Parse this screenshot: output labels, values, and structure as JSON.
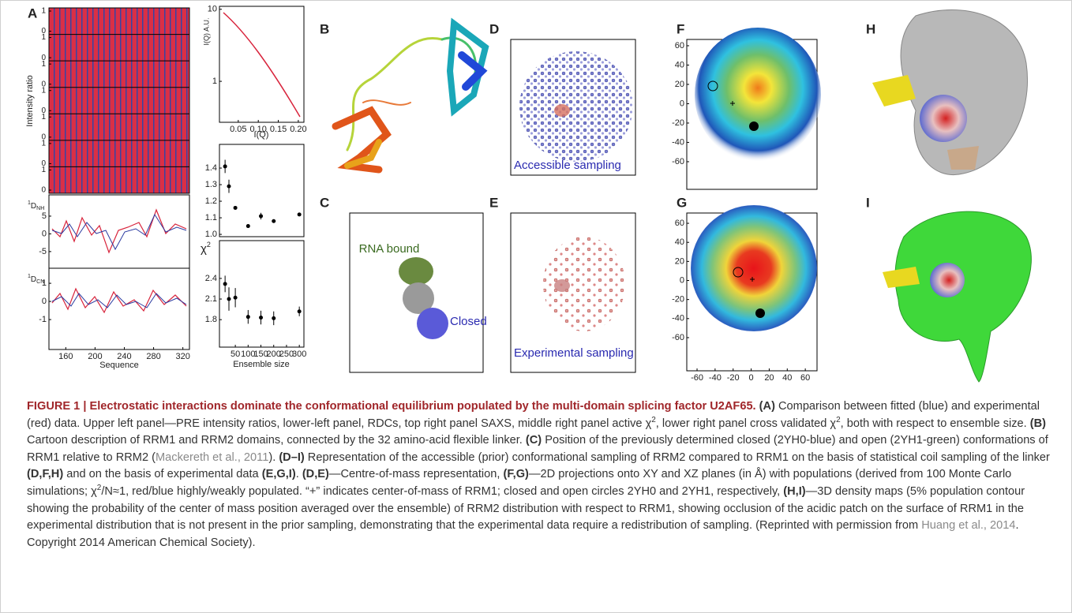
{
  "panels": [
    "A",
    "B",
    "C",
    "D",
    "E",
    "F",
    "G",
    "H",
    "I"
  ],
  "panel_a": {
    "pre": {
      "y_label": "Intensity ratio",
      "yticks": [
        0,
        1
      ]
    },
    "rdc_nh": {
      "label_sup": "1",
      "label": "D",
      "label_sub": "NH",
      "ylim": [
        -9.7,
        11
      ],
      "yticks": [
        5,
        0,
        -5
      ]
    },
    "rdc_cn": {
      "label_sup": "1",
      "label": "D",
      "label_sub": "CN",
      "ylim": [
        -2.65,
        1.83
      ],
      "yticks": [
        1,
        0,
        -1
      ]
    },
    "sequence": {
      "x_label": "Sequence",
      "xlim": [
        137,
        329
      ],
      "xticks": [
        160,
        200,
        240,
        280,
        320
      ]
    },
    "saxs": {
      "y_label": "I(Q) A.U.",
      "x_label": "I(Q)",
      "xlim": [
        0.003,
        0.214
      ],
      "xticks": [
        0.05,
        {
          "value": 0.1,
          "label": "0.10"
        },
        0.15,
        {
          "value": 0.2,
          "label": "0.20"
        }
      ],
      "ylim": [
        0.27,
        11
      ],
      "log_y": true,
      "yticks": [
        10,
        1
      ]
    },
    "chi_active": {
      "xlim": [
        -12,
        318
      ],
      "x": [
        10,
        25,
        50,
        100,
        150,
        200,
        300
      ],
      "ylim": [
        0.986,
        1.543
      ],
      "yticks": [
        1.4,
        1.3,
        1.2,
        1.1,
        {
          "value": 1,
          "label": "1.0"
        }
      ],
      "values": [
        1.41,
        1.29,
        1.16,
        1.05,
        1.11,
        1.08,
        1.12
      ],
      "errors": [
        0.04,
        0.04,
        0.01,
        0.01,
        0.02,
        0.005,
        0.01
      ]
    },
    "chi_cv": {
      "y_label": "χ",
      "y_label_sup": "2",
      "x_label": "Ensemble size",
      "xlim": [
        -12,
        318
      ],
      "xticks": [
        50,
        100,
        150,
        200,
        250,
        300
      ],
      "x": [
        10,
        25,
        50,
        100,
        150,
        200,
        300
      ],
      "ylim": [
        1.4,
        2.95
      ],
      "yticks": [
        2.4,
        2.1,
        1.8
      ],
      "values": [
        2.32,
        2.1,
        2.12,
        1.84,
        1.83,
        1.82,
        1.92
      ],
      "errors": [
        0.12,
        0.17,
        0.14,
        0.1,
        0.1,
        0.1,
        0.07
      ]
    }
  },
  "panel_c": {
    "label_open": "RNA bound",
    "label_closed": "Closed"
  },
  "panel_d": {
    "label": "Accessible sampling"
  },
  "panel_e": {
    "label": "Experimental sampling"
  },
  "panel_f": {
    "ylim": [
      -88.6,
      66.5
    ],
    "yticks": [
      60,
      40,
      20,
      0,
      -20,
      -40,
      -60
    ]
  },
  "panel_g": {
    "ylim": [
      -94.8,
      70.8
    ],
    "yticks": [
      60,
      40,
      20,
      0,
      -20,
      -40,
      -60
    ],
    "xlim": [
      -71.4,
      73
    ],
    "xticks": [
      -60,
      -40,
      -20,
      0,
      20,
      40,
      60
    ]
  },
  "caption": {
    "segments": [
      {
        "text": "FIGURE 1 | Electrostatic interactions dominate the conformational equilibrium populated by the multi-domain splicing factor U2AF65.",
        "style": "heading"
      },
      {
        "text": " (A)",
        "style": "bold"
      },
      {
        "text": " Comparison between fitted (blue) and experimental (red) data. Upper left panel—PRE intensity ratios, lower-left panel, RDCs, top right panel SAXS, middle right panel active χ",
        "style": "normal"
      },
      {
        "text": "2",
        "style": "sup"
      },
      {
        "text": ", lower right panel cross validated χ",
        "style": "normal"
      },
      {
        "text": "2",
        "style": "sup"
      },
      {
        "text": ", both with respect to ensemble size. ",
        "style": "normal"
      },
      {
        "text": "(B)",
        "style": "bold"
      },
      {
        "text": " Cartoon description of RRM1 and RRM2 domains, connected by the 32 amino-acid flexible linker. ",
        "style": "normal"
      },
      {
        "text": "(C)",
        "style": "bold"
      },
      {
        "text": " Position of the previously determined closed (2YH0-blue) and open (2YH1-green) conformations of RRM1 relative to RRM2 (",
        "style": "normal"
      },
      {
        "text": "Mackereth et al., 2011",
        "style": "link"
      },
      {
        "text": "). ",
        "style": "normal"
      },
      {
        "text": "(D–I)",
        "style": "bold"
      },
      {
        "text": " Representation of the accessible (prior) conformational sampling of RRM2 compared to RRM1 on the basis of statistical coil sampling of the linker ",
        "style": "normal"
      },
      {
        "text": "(D,F,H)",
        "style": "bold"
      },
      {
        "text": " and on the basis of experimental data ",
        "style": "normal"
      },
      {
        "text": "(E,G,I)",
        "style": "bold"
      },
      {
        "text": ". ",
        "style": "normal"
      },
      {
        "text": "(D,E)",
        "style": "bold"
      },
      {
        "text": "—Centre-of-mass representation, ",
        "style": "normal"
      },
      {
        "text": "(F,G)",
        "style": "bold"
      },
      {
        "text": "—2D projections onto XY and XZ planes (in Å) with populations (derived from 100 Monte Carlo simulations; χ",
        "style": "normal"
      },
      {
        "text": "2",
        "style": "sup"
      },
      {
        "text": "/N≈1, red/blue highly/weakly populated. “+” indicates center-of-mass of RRM1; closed and open circles 2YH0 and 2YH1, respectively, ",
        "style": "normal"
      },
      {
        "text": "(H,I)",
        "style": "bold"
      },
      {
        "text": "—3D density maps (5% population contour showing the probability of the center of mass position averaged over the ensemble) of RRM2 distribution with respect to RRM1, showing occlusion of the acidic patch on the surface of RRM1 in the experimental distribution that is not present in the prior sampling, demonstrating that the experimental data require a redistribution of sampling. (Reprinted with permission from ",
        "style": "normal"
      },
      {
        "text": "Huang et al., 2014",
        "style": "link"
      },
      {
        "text": ". Copyright 2014 American Chemical Society).",
        "style": "normal"
      }
    ]
  }
}
